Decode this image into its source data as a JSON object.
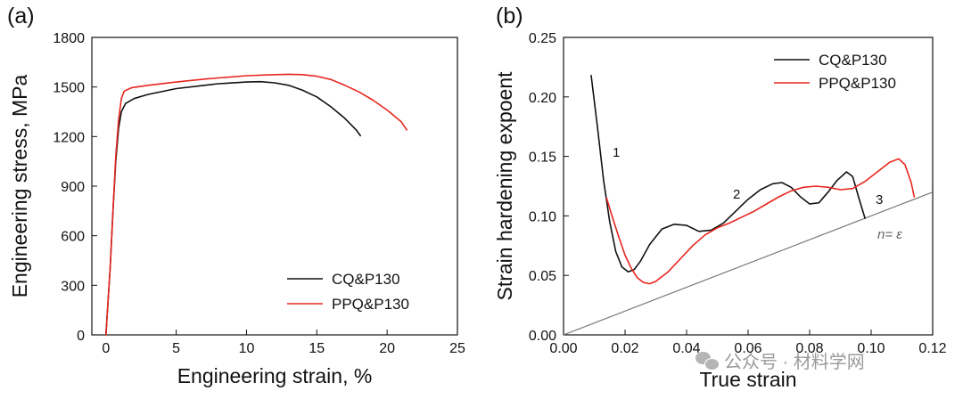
{
  "panel_a": {
    "label": "(a)",
    "ylabel": "Engineering stress, MPa",
    "xlabel": "Engineering strain, %",
    "legend": [
      "CQ&P130",
      "PPQ&P130"
    ]
  },
  "panel_b": {
    "label": "(b)",
    "ylabel": "Strain hardening expoent",
    "xlabel": "True strain",
    "legend": [
      "CQ&P130",
      "PPQ&P130"
    ],
    "annotations": [
      "1",
      "2",
      "3"
    ],
    "reference_label": "n= ε"
  },
  "watermark": "公众号 · 材料学网",
  "colors": {
    "cq": "#111111",
    "ppq": "#e8261f",
    "reference": "#777777"
  },
  "chart_data": [
    {
      "type": "line",
      "title": "",
      "xlabel": "Engineering strain, %",
      "ylabel": "Engineering stress, MPa",
      "xlim": [
        -1,
        25
      ],
      "ylim": [
        0,
        1800
      ],
      "xticks": [
        0,
        5,
        10,
        15,
        20,
        25
      ],
      "yticks": [
        0,
        300,
        600,
        900,
        1200,
        1500,
        1800
      ],
      "legend_position": "bottom-right",
      "grid": false,
      "series": [
        {
          "name": "CQ&P130",
          "x": [
            0,
            0.3,
            0.5,
            0.7,
            0.9,
            1.1,
            1.4,
            2,
            3,
            5,
            7,
            8,
            10,
            11,
            12,
            13,
            14,
            15,
            16,
            17,
            17.8,
            18.1
          ],
          "y": [
            0,
            400,
            750,
            1050,
            1250,
            1350,
            1400,
            1430,
            1455,
            1490,
            1510,
            1520,
            1530,
            1532,
            1525,
            1510,
            1480,
            1440,
            1380,
            1310,
            1240,
            1205
          ]
        },
        {
          "name": "PPQ&P130",
          "x": [
            0,
            0.3,
            0.5,
            0.7,
            0.9,
            1.1,
            1.3,
            1.8,
            3,
            5,
            7,
            8,
            10,
            12,
            13,
            14,
            15,
            16,
            17,
            18,
            19,
            20,
            21,
            21.4
          ],
          "y": [
            0,
            400,
            750,
            1080,
            1300,
            1430,
            1475,
            1495,
            1510,
            1530,
            1548,
            1555,
            1568,
            1575,
            1577,
            1575,
            1565,
            1545,
            1510,
            1470,
            1420,
            1360,
            1290,
            1240
          ]
        }
      ]
    },
    {
      "type": "line",
      "title": "",
      "xlabel": "True strain",
      "ylabel": "Strain hardening expoent",
      "xlim": [
        0,
        0.12
      ],
      "ylim": [
        0,
        0.25
      ],
      "xticks": [
        0.0,
        0.02,
        0.04,
        0.06,
        0.08,
        0.1,
        0.12
      ],
      "yticks": [
        0.0,
        0.05,
        0.1,
        0.15,
        0.2,
        0.25
      ],
      "legend_position": "top-right",
      "grid": false,
      "series": [
        {
          "name": "CQ&P130",
          "x": [
            0.009,
            0.011,
            0.013,
            0.015,
            0.017,
            0.019,
            0.021,
            0.023,
            0.025,
            0.028,
            0.032,
            0.036,
            0.04,
            0.044,
            0.048,
            0.052,
            0.056,
            0.06,
            0.064,
            0.068,
            0.071,
            0.074,
            0.077,
            0.08,
            0.083,
            0.086,
            0.089,
            0.092,
            0.094,
            0.096,
            0.098
          ],
          "y": [
            0.218,
            0.175,
            0.13,
            0.095,
            0.07,
            0.057,
            0.053,
            0.055,
            0.062,
            0.076,
            0.089,
            0.093,
            0.092,
            0.087,
            0.088,
            0.094,
            0.104,
            0.114,
            0.122,
            0.127,
            0.128,
            0.124,
            0.116,
            0.11,
            0.111,
            0.12,
            0.13,
            0.137,
            0.133,
            0.115,
            0.098
          ]
        },
        {
          "name": "PPQ&P130",
          "x": [
            0.014,
            0.016,
            0.018,
            0.02,
            0.022,
            0.024,
            0.026,
            0.028,
            0.03,
            0.034,
            0.038,
            0.042,
            0.046,
            0.05,
            0.054,
            0.058,
            0.062,
            0.066,
            0.07,
            0.074,
            0.078,
            0.082,
            0.086,
            0.09,
            0.094,
            0.098,
            0.102,
            0.106,
            0.109,
            0.111,
            0.113,
            0.114
          ],
          "y": [
            0.115,
            0.098,
            0.082,
            0.067,
            0.056,
            0.048,
            0.044,
            0.043,
            0.045,
            0.053,
            0.064,
            0.075,
            0.084,
            0.09,
            0.094,
            0.099,
            0.104,
            0.11,
            0.116,
            0.121,
            0.124,
            0.125,
            0.124,
            0.122,
            0.123,
            0.129,
            0.137,
            0.145,
            0.148,
            0.143,
            0.128,
            0.116
          ]
        }
      ],
      "reference_line": {
        "name": "n= ε",
        "x": [
          0,
          0.12
        ],
        "y": [
          0,
          0.12
        ]
      }
    }
  ]
}
